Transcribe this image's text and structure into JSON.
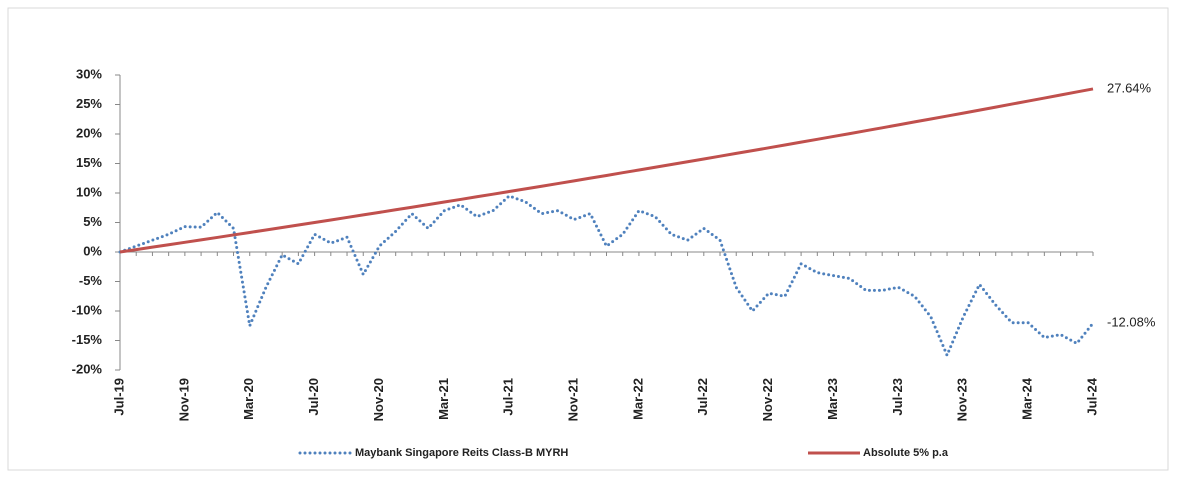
{
  "chart_data": {
    "type": "line",
    "categories": [
      "Jul-19",
      null,
      null,
      null,
      "Nov-19",
      null,
      null,
      null,
      "Mar-20",
      null,
      null,
      null,
      "Jul-20",
      null,
      null,
      null,
      "Nov-20",
      null,
      null,
      null,
      "Mar-21",
      null,
      null,
      null,
      "Jul-21",
      null,
      null,
      null,
      "Nov-21",
      null,
      null,
      null,
      "Mar-22",
      null,
      null,
      null,
      "Jul-22",
      null,
      null,
      null,
      "Nov-22",
      null,
      null,
      null,
      "Mar-23",
      null,
      null,
      null,
      "Jul-23",
      null,
      null,
      null,
      "Nov-23",
      null,
      null,
      null,
      "Mar-24",
      null,
      null,
      null,
      "Jul-24"
    ],
    "series": [
      {
        "name": "Maybank Singapore Reits Class-B MYRH",
        "color": "#4f81bd",
        "style": "dotted",
        "values": [
          0,
          1,
          2,
          3,
          4.3,
          4.2,
          6.7,
          4,
          -12.5,
          -6,
          -0.5,
          -2,
          3,
          1.5,
          2.5,
          -3.8,
          1,
          3.5,
          6.5,
          4,
          7,
          8,
          6,
          7,
          9.5,
          8.5,
          6.5,
          7,
          5.5,
          6.5,
          1,
          3,
          7,
          6,
          3,
          2,
          4,
          2,
          -6,
          -10,
          -7,
          -7.5,
          -2,
          -3.5,
          -4,
          -4.5,
          -6.5,
          -6.5,
          -6,
          -7.5,
          -11,
          -17.5,
          -11,
          -5.5,
          -9,
          -12,
          -12,
          -14.5,
          -14,
          -15.5,
          -12.08
        ],
        "value_labels": [
          null,
          null,
          null,
          null,
          null,
          null,
          null,
          null,
          null,
          null,
          null,
          null,
          null,
          null,
          null,
          null,
          null,
          null,
          null,
          null,
          null,
          null,
          null,
          null,
          null,
          null,
          null,
          null,
          null,
          null,
          null,
          null,
          null,
          null,
          null,
          null,
          null,
          null,
          null,
          null,
          null,
          null,
          null,
          null,
          null,
          null,
          null,
          null,
          null,
          null,
          null,
          null,
          null,
          null,
          null,
          null,
          null,
          null,
          null,
          null,
          "-12.08%"
        ]
      },
      {
        "name": "Absolute 5% p.a",
        "color": "#c0504d",
        "style": "solid",
        "values": [
          0,
          0.41,
          0.82,
          1.23,
          1.64,
          2.05,
          2.47,
          2.89,
          3.31,
          3.73,
          4.15,
          4.57,
          5,
          5.43,
          5.86,
          6.29,
          6.72,
          7.16,
          7.59,
          8.03,
          8.47,
          8.91,
          9.36,
          9.8,
          10.25,
          10.7,
          11.15,
          11.6,
          12.06,
          12.52,
          12.97,
          13.44,
          13.9,
          14.36,
          14.83,
          15.3,
          15.76,
          16.24,
          16.71,
          17.18,
          17.66,
          18.14,
          18.62,
          19.1,
          19.59,
          20.07,
          20.56,
          21.05,
          21.55,
          22.05,
          22.54,
          23.04,
          23.54,
          24.05,
          24.55,
          25.07,
          25.58,
          26.09,
          26.61,
          27.13,
          27.64
        ],
        "value_labels": [
          null,
          null,
          null,
          null,
          null,
          null,
          null,
          null,
          null,
          null,
          null,
          null,
          null,
          null,
          null,
          null,
          null,
          null,
          null,
          null,
          null,
          null,
          null,
          null,
          null,
          null,
          null,
          null,
          null,
          null,
          null,
          null,
          null,
          null,
          null,
          null,
          null,
          null,
          null,
          null,
          null,
          null,
          null,
          null,
          null,
          null,
          null,
          null,
          null,
          null,
          null,
          null,
          null,
          null,
          null,
          null,
          null,
          null,
          null,
          null,
          "27.64%"
        ]
      }
    ],
    "ylim": [
      -20,
      30
    ],
    "yticks": [
      {
        "value": -20,
        "label": "-20%"
      },
      {
        "value": -15,
        "label": "-15%"
      },
      {
        "value": -10,
        "label": "-10%"
      },
      {
        "value": -5,
        "label": "-5%"
      },
      {
        "value": 0,
        "label": "0%"
      },
      {
        "value": 5,
        "label": "5%"
      },
      {
        "value": 10,
        "label": "10%"
      },
      {
        "value": 15,
        "label": "15%"
      },
      {
        "value": 20,
        "label": "20%"
      },
      {
        "value": 25,
        "label": "25%"
      },
      {
        "value": 30,
        "label": "30%"
      }
    ],
    "grid": false,
    "legend": "bottom"
  }
}
